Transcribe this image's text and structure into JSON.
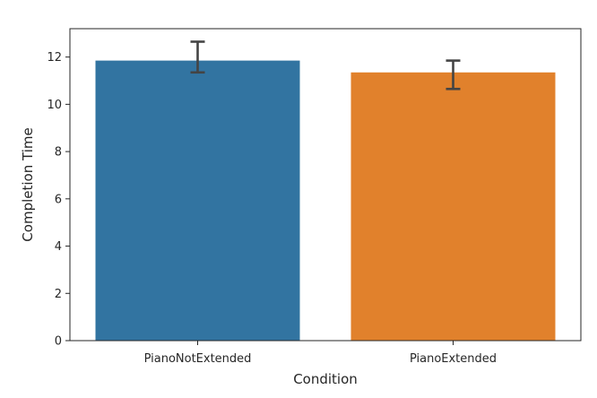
{
  "chart_data": {
    "type": "bar",
    "title": "",
    "xlabel": "Condition",
    "ylabel": "Completion Time",
    "categories": [
      "PianoNotExtended",
      "PianoExtended"
    ],
    "values": [
      11.85,
      11.35
    ],
    "error_bars": [
      {
        "low": 11.35,
        "high": 12.65
      },
      {
        "low": 10.65,
        "high": 11.85
      }
    ],
    "colors": [
      "#3274a1",
      "#e1812c"
    ],
    "errorbar_color": "#444444",
    "ylim": [
      0,
      13.2
    ],
    "yticks": [
      "0",
      "2",
      "4",
      "6",
      "8",
      "10",
      "12"
    ],
    "grid": false,
    "legend": "none"
  }
}
